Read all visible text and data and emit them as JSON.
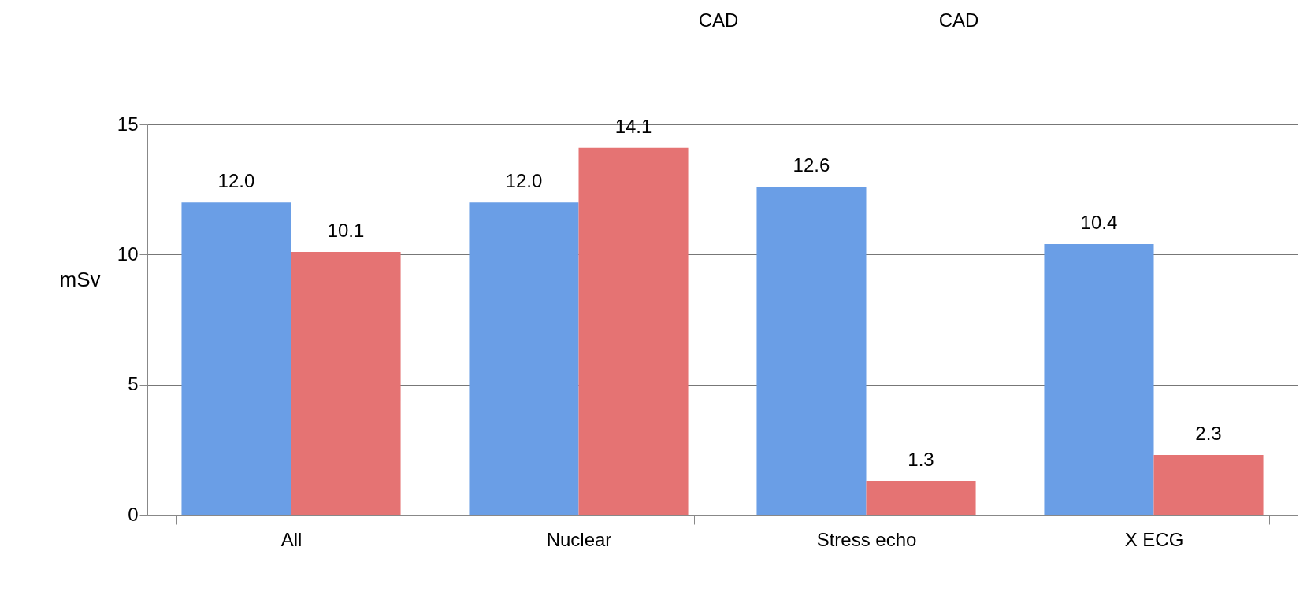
{
  "chart_data": {
    "type": "bar",
    "ylabel": "mSv",
    "categories": [
      "All",
      "Nuclear",
      "Stress echo",
      "X ECG"
    ],
    "series": [
      {
        "color": "#6a9ee6",
        "values": [
          12.0,
          12.0,
          12.6,
          10.4
        ],
        "value_labels": [
          "12.0",
          "12.0",
          "12.6",
          "10.4"
        ]
      },
      {
        "color": "#e57373",
        "values": [
          10.1,
          14.1,
          1.3,
          2.3
        ],
        "value_labels": [
          "10.1",
          "14.1",
          "1.3",
          "2.3"
        ]
      }
    ],
    "ylim": [
      0,
      15
    ],
    "yticks": [
      0,
      5,
      10,
      15
    ],
    "grid": "y",
    "annotations": [
      "CAD",
      "CAD"
    ]
  }
}
